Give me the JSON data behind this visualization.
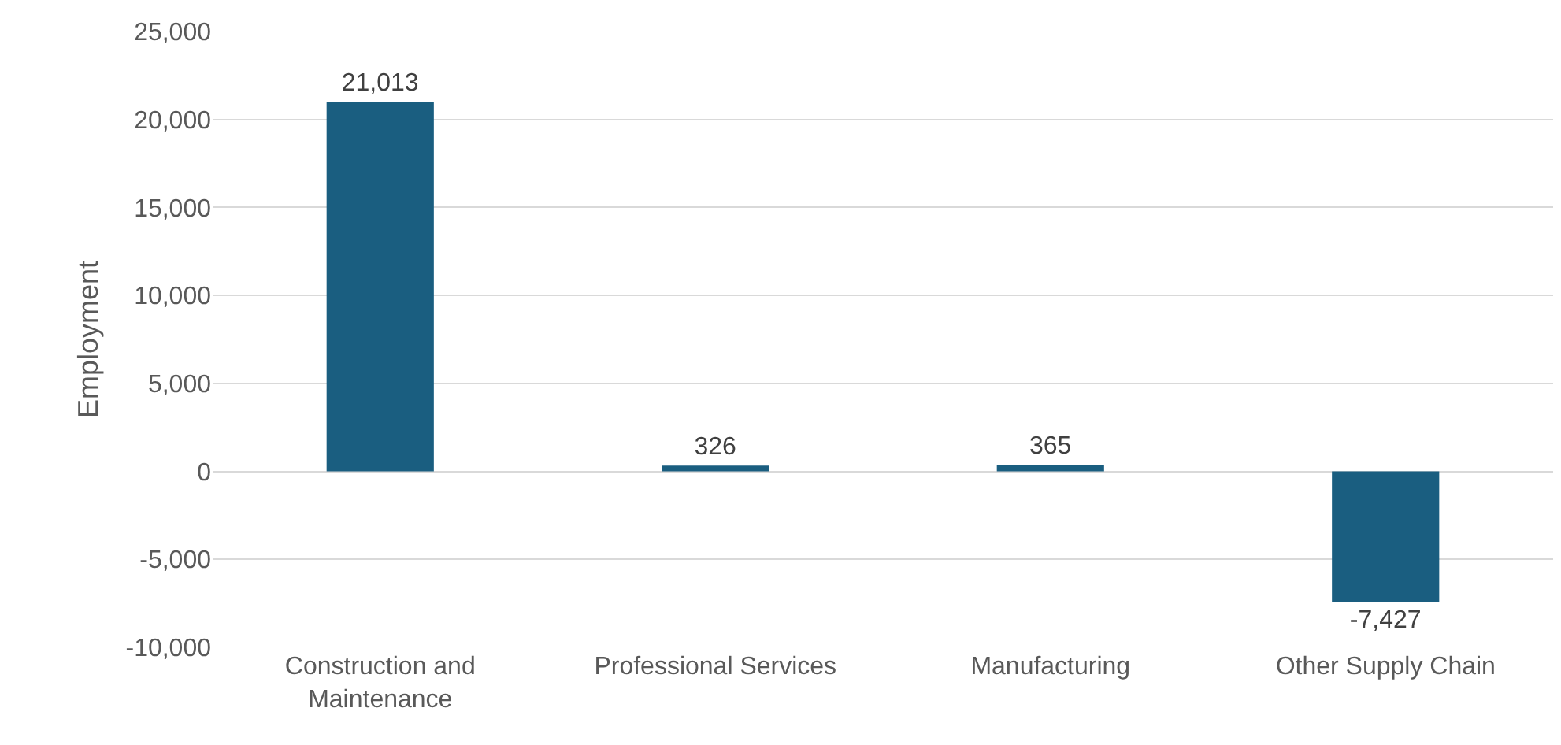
{
  "chart_data": {
    "type": "bar",
    "ylabel": "Employment",
    "categories": [
      "Construction and Maintenance",
      "Professional Services",
      "Manufacturing",
      "Other Supply Chain"
    ],
    "values": [
      21013,
      326,
      365,
      -7427
    ],
    "value_labels": [
      "21,013",
      "326",
      "365",
      "-7,427"
    ],
    "color": "#1a5e80",
    "ylim": [
      -10000,
      25000
    ],
    "yticks": [
      {
        "value": -10000,
        "label": "-10,000"
      },
      {
        "value": -5000,
        "label": "-5,000"
      },
      0,
      {
        "value": 5000,
        "label": "5,000"
      },
      {
        "value": 10000,
        "label": "10,000"
      },
      {
        "value": 15000,
        "label": "15,000"
      },
      {
        "value": 20000,
        "label": "20,000"
      },
      {
        "value": 25000,
        "label": "25,000"
      }
    ],
    "grid": "y"
  }
}
